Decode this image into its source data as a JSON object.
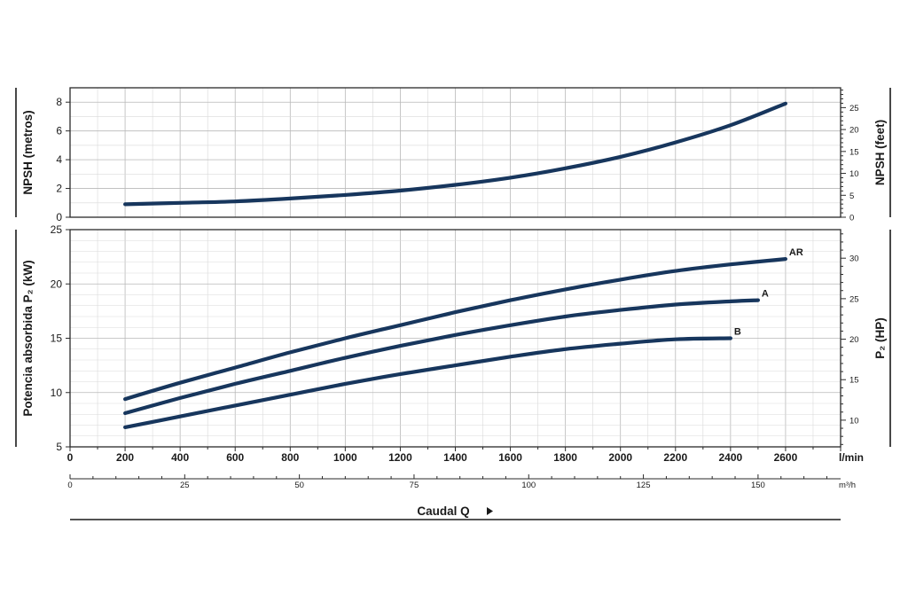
{
  "chart_data": [
    {
      "type": "line",
      "ylabel": "NPSH (metros)",
      "ylabel_right": "NPSH (feet)",
      "x_unit": "l/min",
      "xlim": [
        0,
        2800
      ],
      "ylim": [
        0,
        9
      ],
      "yticks": [
        0,
        2,
        4,
        6,
        8
      ],
      "yticks_right": [
        0,
        5,
        10,
        15,
        20,
        25
      ],
      "grid": true,
      "series": [
        {
          "x": [
            200,
            400,
            600,
            800,
            1000,
            1200,
            1400,
            1600,
            1800,
            2000,
            2200,
            2400,
            2600
          ],
          "values": [
            0.9,
            1.0,
            1.1,
            1.3,
            1.55,
            1.85,
            2.25,
            2.75,
            3.4,
            4.2,
            5.2,
            6.4,
            7.9
          ]
        }
      ]
    },
    {
      "type": "line",
      "ylabel": "Potencia absorbida P₂ (kW)",
      "ylabel_right": "P₂ (HP)",
      "x_unit": "l/min",
      "xlim": [
        0,
        2800
      ],
      "ylim": [
        5,
        25
      ],
      "yticks": [
        5,
        10,
        15,
        20,
        25
      ],
      "yticks_right": [
        10,
        15,
        20,
        25,
        30
      ],
      "grid": true,
      "series": [
        {
          "name": "AR",
          "x": [
            200,
            400,
            600,
            800,
            1000,
            1200,
            1400,
            1600,
            1800,
            2000,
            2200,
            2400,
            2600
          ],
          "values": [
            9.4,
            10.9,
            12.3,
            13.7,
            15.0,
            16.2,
            17.4,
            18.5,
            19.5,
            20.4,
            21.2,
            21.8,
            22.3
          ]
        },
        {
          "name": "A",
          "x": [
            200,
            400,
            600,
            800,
            1000,
            1200,
            1400,
            1600,
            1800,
            2000,
            2200,
            2400,
            2500
          ],
          "values": [
            8.1,
            9.5,
            10.8,
            12.0,
            13.2,
            14.3,
            15.3,
            16.2,
            17.0,
            17.6,
            18.1,
            18.4,
            18.5
          ]
        },
        {
          "name": "B",
          "x": [
            200,
            400,
            600,
            800,
            1000,
            1200,
            1400,
            1600,
            1800,
            2000,
            2200,
            2400
          ],
          "values": [
            6.8,
            7.8,
            8.8,
            9.8,
            10.8,
            11.7,
            12.5,
            13.3,
            14.0,
            14.5,
            14.9,
            15.0
          ]
        }
      ],
      "xticks": [
        0,
        200,
        400,
        600,
        800,
        1000,
        1200,
        1400,
        1600,
        1800,
        2000,
        2200,
        2400,
        2600
      ],
      "xticks_m3h": [
        0,
        25,
        50,
        75,
        100,
        125,
        150
      ],
      "x2_unit": "m³/h",
      "xlabel": "Caudal Q"
    }
  ]
}
